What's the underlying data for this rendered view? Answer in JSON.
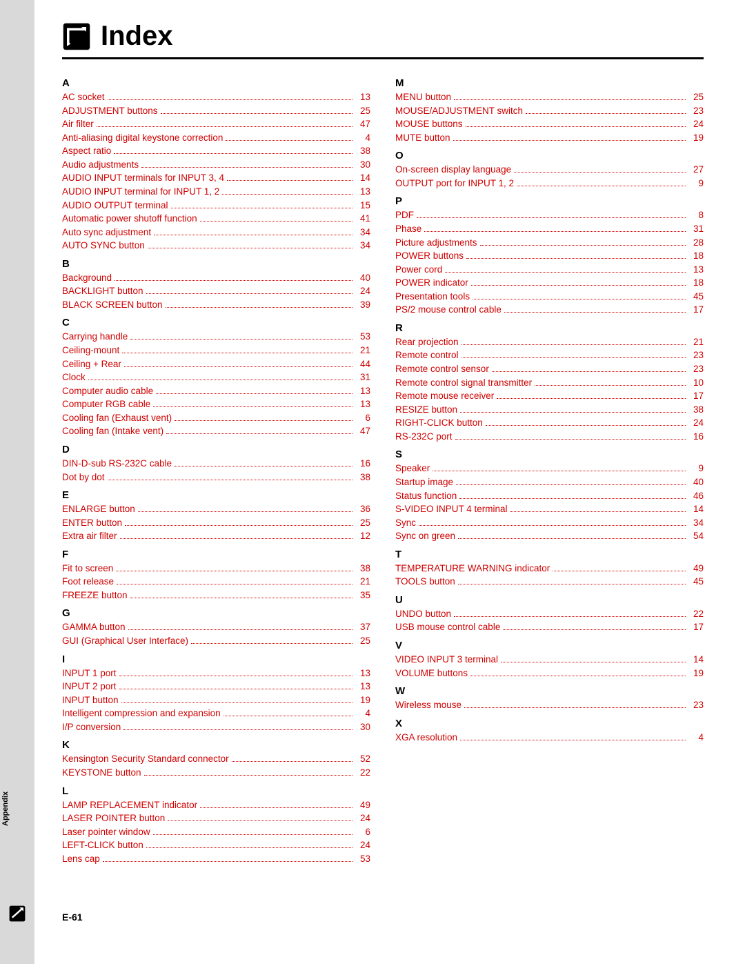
{
  "title": "Index",
  "footer": "E-61",
  "appendix_label": "Appendix",
  "colors": {
    "link": "#d00000",
    "text": "#000000",
    "gray_bar": "#d9d9d9",
    "background": "#ffffff"
  },
  "left_column": [
    {
      "letter": "A",
      "entries": [
        {
          "label": "AC socket",
          "page": "13"
        },
        {
          "label": "ADJUSTMENT buttons",
          "page": "25"
        },
        {
          "label": "Air filter",
          "page": "47"
        },
        {
          "label": "Anti-aliasing digital keystone correction",
          "page": "4"
        },
        {
          "label": "Aspect ratio",
          "page": "38"
        },
        {
          "label": "Audio adjustments",
          "page": "30"
        },
        {
          "label": "AUDIO INPUT terminals for INPUT 3, 4",
          "page": "14"
        },
        {
          "label": "AUDIO INPUT terminal for INPUT 1, 2",
          "page": "13"
        },
        {
          "label": "AUDIO OUTPUT terminal",
          "page": "15"
        },
        {
          "label": "Automatic power shutoff function",
          "page": "41"
        },
        {
          "label": "Auto sync adjustment",
          "page": "34"
        },
        {
          "label": "AUTO SYNC button",
          "page": "34"
        }
      ]
    },
    {
      "letter": "B",
      "entries": [
        {
          "label": "Background",
          "page": "40"
        },
        {
          "label": "BACKLIGHT button",
          "page": "24"
        },
        {
          "label": "BLACK SCREEN button",
          "page": "39"
        }
      ]
    },
    {
      "letter": "C",
      "entries": [
        {
          "label": "Carrying handle",
          "page": "53"
        },
        {
          "label": "Ceiling-mount",
          "page": "21"
        },
        {
          "label": "Ceiling + Rear",
          "page": "44"
        },
        {
          "label": "Clock",
          "page": "31"
        },
        {
          "label": "Computer audio cable",
          "page": "13"
        },
        {
          "label": "Computer RGB cable",
          "page": "13"
        },
        {
          "label": "Cooling fan (Exhaust vent)",
          "page": "6"
        },
        {
          "label": "Cooling fan (Intake vent)",
          "page": "47"
        }
      ]
    },
    {
      "letter": "D",
      "entries": [
        {
          "label": "DIN-D-sub RS-232C cable",
          "page": "16"
        },
        {
          "label": "Dot by dot",
          "page": "38"
        }
      ]
    },
    {
      "letter": "E",
      "entries": [
        {
          "label": "ENLARGE button",
          "page": "36"
        },
        {
          "label": "ENTER button",
          "page": "25"
        },
        {
          "label": "Extra air filter",
          "page": "12"
        }
      ]
    },
    {
      "letter": "F",
      "entries": [
        {
          "label": "Fit to screen",
          "page": "38"
        },
        {
          "label": "Foot release",
          "page": "21"
        },
        {
          "label": "FREEZE button",
          "page": "35"
        }
      ]
    },
    {
      "letter": "G",
      "entries": [
        {
          "label": "GAMMA button",
          "page": "37"
        },
        {
          "label": "GUI (Graphical User Interface)",
          "page": "25"
        }
      ]
    },
    {
      "letter": "I",
      "entries": [
        {
          "label": "INPUT 1 port",
          "page": "13"
        },
        {
          "label": "INPUT 2 port",
          "page": "13"
        },
        {
          "label": "INPUT button",
          "page": "19"
        },
        {
          "label": "Intelligent compression and expansion",
          "page": "4"
        },
        {
          "label": "I/P conversion",
          "page": "30"
        }
      ]
    },
    {
      "letter": "K",
      "entries": [
        {
          "label": "Kensington Security Standard connector",
          "page": "52"
        },
        {
          "label": "KEYSTONE button",
          "page": "22"
        }
      ]
    },
    {
      "letter": "L",
      "entries": [
        {
          "label": "LAMP REPLACEMENT indicator",
          "page": "49"
        },
        {
          "label": "LASER POINTER button",
          "page": "24"
        },
        {
          "label": "Laser pointer window",
          "page": "6"
        },
        {
          "label": "LEFT-CLICK button",
          "page": "24"
        },
        {
          "label": "Lens cap",
          "page": "53"
        }
      ]
    }
  ],
  "right_column": [
    {
      "letter": "M",
      "entries": [
        {
          "label": "MENU button",
          "page": "25"
        },
        {
          "label": "MOUSE/ADJUSTMENT switch",
          "page": "23"
        },
        {
          "label": "MOUSE buttons",
          "page": "24"
        },
        {
          "label": "MUTE button",
          "page": "19"
        }
      ]
    },
    {
      "letter": "O",
      "entries": [
        {
          "label": "On-screen display language",
          "page": "27"
        },
        {
          "label": "OUTPUT port for INPUT 1, 2",
          "page": "9"
        }
      ]
    },
    {
      "letter": "P",
      "entries": [
        {
          "label": "PDF",
          "page": "8"
        },
        {
          "label": "Phase",
          "page": "31"
        },
        {
          "label": "Picture adjustments",
          "page": "28"
        },
        {
          "label": "POWER buttons",
          "page": "18"
        },
        {
          "label": "Power cord",
          "page": "13"
        },
        {
          "label": "POWER indicator",
          "page": "18"
        },
        {
          "label": "Presentation tools",
          "page": "45"
        },
        {
          "label": "PS/2 mouse control cable",
          "page": "17"
        }
      ]
    },
    {
      "letter": "R",
      "entries": [
        {
          "label": "Rear projection",
          "page": "21"
        },
        {
          "label": "Remote control",
          "page": "23"
        },
        {
          "label": "Remote control sensor",
          "page": "23"
        },
        {
          "label": "Remote control signal transmitter",
          "page": "10"
        },
        {
          "label": "Remote mouse receiver",
          "page": "17"
        },
        {
          "label": "RESIZE button",
          "page": "38"
        },
        {
          "label": "RIGHT-CLICK button",
          "page": "24"
        },
        {
          "label": "RS-232C port",
          "page": "16"
        }
      ]
    },
    {
      "letter": "S",
      "entries": [
        {
          "label": "Speaker",
          "page": "9"
        },
        {
          "label": "Startup image",
          "page": "40"
        },
        {
          "label": "Status function",
          "page": "46"
        },
        {
          "label": "S-VIDEO INPUT 4 terminal",
          "page": "14"
        },
        {
          "label": "Sync",
          "page": "34"
        },
        {
          "label": "Sync on green",
          "page": "54"
        }
      ]
    },
    {
      "letter": "T",
      "entries": [
        {
          "label": "TEMPERATURE WARNING indicator",
          "page": "49"
        },
        {
          "label": "TOOLS button",
          "page": "45"
        }
      ]
    },
    {
      "letter": "U",
      "entries": [
        {
          "label": "UNDO button",
          "page": "22"
        },
        {
          "label": "USB mouse control cable",
          "page": "17"
        }
      ]
    },
    {
      "letter": "V",
      "entries": [
        {
          "label": "VIDEO INPUT 3 terminal",
          "page": "14"
        },
        {
          "label": "VOLUME buttons",
          "page": "19"
        }
      ]
    },
    {
      "letter": "W",
      "entries": [
        {
          "label": "Wireless mouse",
          "page": "23"
        }
      ]
    },
    {
      "letter": "X",
      "entries": [
        {
          "label": "XGA resolution",
          "page": "4"
        }
      ]
    }
  ]
}
